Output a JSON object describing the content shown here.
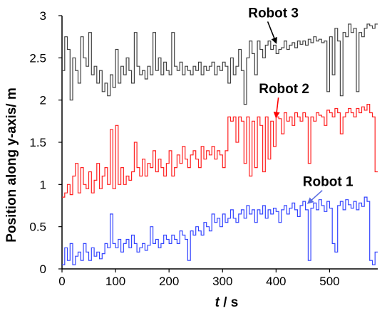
{
  "chart_data": {
    "type": "line",
    "xlabel_var": "t",
    "xlabel_unit": " / s",
    "ylabel": "Position along y-axis/ m",
    "xlim": [
      0,
      590
    ],
    "ylim": [
      0,
      3
    ],
    "xticks": [
      0,
      100,
      200,
      300,
      400,
      500
    ],
    "yticks": [
      0,
      0.5,
      1,
      1.5,
      2,
      2.5,
      3
    ],
    "ytick_labels": [
      "0",
      "0.5",
      "1",
      "1.5",
      "2",
      "2.5",
      "3"
    ],
    "grid": false,
    "annotations": [
      {
        "text": "Robot 3",
        "series": 2,
        "color": "#000000",
        "label_x": 395,
        "label_y": 2.98,
        "arrow_to": [
          400,
          2.68
        ]
      },
      {
        "text": "Robot 2",
        "series": 1,
        "color": "#ff0000",
        "label_x": 415,
        "label_y": 2.08,
        "arrow_to": [
          400,
          1.8
        ]
      },
      {
        "text": "Robot 1",
        "series": 0,
        "color": "#5b6ee1",
        "label_x": 497,
        "label_y": 0.98,
        "arrow_to": [
          460,
          0.78
        ]
      }
    ],
    "series": [
      {
        "name": "Robot 1",
        "color": "#3344ff",
        "x": [
          0,
          5,
          10,
          15,
          20,
          25,
          30,
          35,
          40,
          45,
          50,
          55,
          60,
          65,
          70,
          75,
          80,
          85,
          90,
          95,
          100,
          105,
          110,
          115,
          120,
          125,
          130,
          135,
          140,
          145,
          150,
          155,
          160,
          165,
          170,
          175,
          180,
          185,
          190,
          195,
          200,
          205,
          210,
          215,
          220,
          225,
          230,
          235,
          240,
          245,
          250,
          255,
          260,
          265,
          270,
          275,
          280,
          285,
          290,
          295,
          300,
          305,
          310,
          315,
          320,
          325,
          330,
          335,
          340,
          345,
          350,
          355,
          360,
          365,
          370,
          375,
          380,
          385,
          390,
          395,
          400,
          405,
          410,
          415,
          420,
          425,
          430,
          435,
          440,
          445,
          450,
          455,
          460,
          465,
          470,
          475,
          480,
          485,
          490,
          495,
          500,
          505,
          510,
          515,
          520,
          525,
          530,
          535,
          540,
          545,
          550,
          555,
          560,
          565,
          570,
          575,
          580,
          585
        ],
        "y": [
          0.05,
          0.25,
          0.1,
          0.3,
          0.05,
          0.15,
          0.2,
          0.1,
          0.3,
          0.2,
          0.1,
          0.25,
          0.15,
          0.2,
          0.12,
          0.18,
          0.3,
          0.25,
          0.65,
          0.3,
          0.25,
          0.35,
          0.2,
          0.3,
          0.35,
          0.25,
          0.4,
          0.3,
          0.2,
          0.25,
          0.3,
          0.22,
          0.28,
          0.5,
          0.3,
          0.35,
          0.25,
          0.3,
          0.4,
          0.35,
          0.3,
          0.4,
          0.35,
          0.3,
          0.45,
          0.4,
          0.35,
          0.1,
          0.45,
          0.4,
          0.5,
          0.45,
          0.4,
          0.55,
          0.5,
          0.45,
          0.65,
          0.55,
          0.6,
          0.5,
          0.65,
          0.55,
          0.6,
          0.7,
          0.6,
          0.55,
          0.65,
          0.7,
          0.6,
          0.75,
          0.65,
          0.7,
          0.55,
          0.7,
          0.65,
          0.75,
          0.6,
          0.7,
          0.65,
          0.72,
          0.68,
          0.55,
          0.7,
          0.75,
          0.65,
          0.72,
          0.78,
          0.7,
          0.62,
          0.75,
          0.8,
          0.7,
          0.1,
          0.72,
          0.78,
          0.7,
          0.82,
          0.75,
          0.68,
          0.8,
          0.72,
          0.3,
          0.2,
          0.75,
          0.8,
          0.7,
          0.82,
          0.76,
          0.72,
          0.8,
          0.7,
          0.78,
          0.74,
          0.85,
          0.8,
          0.1,
          0.05,
          0.2
        ]
      },
      {
        "name": "Robot 2",
        "color": "#ff2020",
        "x": [
          0,
          5,
          10,
          15,
          20,
          25,
          30,
          35,
          40,
          45,
          50,
          55,
          60,
          65,
          70,
          75,
          80,
          85,
          90,
          95,
          100,
          105,
          110,
          115,
          120,
          125,
          130,
          135,
          140,
          145,
          150,
          155,
          160,
          165,
          170,
          175,
          180,
          185,
          190,
          195,
          200,
          205,
          210,
          215,
          220,
          225,
          230,
          235,
          240,
          245,
          250,
          255,
          260,
          265,
          270,
          275,
          280,
          285,
          290,
          295,
          300,
          305,
          310,
          315,
          320,
          325,
          330,
          335,
          340,
          345,
          350,
          355,
          360,
          365,
          370,
          375,
          380,
          385,
          390,
          395,
          400,
          405,
          410,
          415,
          420,
          425,
          430,
          435,
          440,
          445,
          450,
          455,
          460,
          465,
          470,
          475,
          480,
          485,
          490,
          495,
          500,
          505,
          510,
          515,
          520,
          525,
          530,
          535,
          540,
          545,
          550,
          555,
          560,
          565,
          570,
          575,
          580,
          585
        ],
        "y": [
          0.85,
          0.9,
          1.0,
          0.88,
          1.1,
          1.25,
          0.9,
          1.2,
          1.0,
          0.95,
          1.15,
          0.9,
          1.05,
          1.25,
          0.95,
          1.1,
          1.2,
          1.0,
          1.65,
          0.95,
          1.7,
          1.0,
          1.2,
          1.0,
          1.1,
          1.05,
          1.15,
          1.5,
          1.2,
          1.1,
          1.3,
          1.1,
          1.25,
          1.2,
          1.4,
          1.15,
          1.3,
          1.2,
          1.1,
          1.25,
          1.4,
          1.1,
          1.2,
          1.35,
          1.25,
          1.45,
          1.3,
          1.2,
          1.35,
          1.4,
          1.3,
          1.2,
          1.45,
          1.3,
          1.4,
          1.35,
          1.45,
          1.3,
          1.4,
          1.35,
          1.2,
          1.4,
          1.8,
          1.75,
          1.8,
          1.5,
          1.8,
          1.75,
          1.25,
          1.8,
          1.1,
          1.75,
          1.2,
          1.8,
          1.7,
          1.15,
          1.8,
          1.3,
          1.75,
          1.45,
          1.8,
          1.78,
          1.6,
          1.85,
          1.75,
          1.8,
          1.7,
          1.85,
          1.8,
          1.75,
          1.85,
          1.8,
          1.25,
          1.8,
          1.75,
          1.85,
          1.82,
          1.8,
          1.7,
          1.88,
          1.85,
          1.8,
          1.9,
          1.85,
          1.6,
          1.8,
          1.85,
          1.9,
          1.85,
          1.8,
          1.9,
          1.85,
          1.92,
          1.88,
          1.95,
          1.85,
          1.8,
          1.15
        ]
      },
      {
        "name": "Robot 3",
        "color": "#404040",
        "x": [
          0,
          5,
          10,
          15,
          20,
          25,
          30,
          35,
          40,
          45,
          50,
          55,
          60,
          65,
          70,
          75,
          80,
          85,
          90,
          95,
          100,
          105,
          110,
          115,
          120,
          125,
          130,
          135,
          140,
          145,
          150,
          155,
          160,
          165,
          170,
          175,
          180,
          185,
          190,
          195,
          200,
          205,
          210,
          215,
          220,
          225,
          230,
          235,
          240,
          245,
          250,
          255,
          260,
          265,
          270,
          275,
          280,
          285,
          290,
          295,
          300,
          305,
          310,
          315,
          320,
          325,
          330,
          335,
          340,
          345,
          350,
          355,
          360,
          365,
          370,
          375,
          380,
          385,
          390,
          395,
          400,
          405,
          410,
          415,
          420,
          425,
          430,
          435,
          440,
          445,
          450,
          455,
          460,
          465,
          470,
          475,
          480,
          485,
          490,
          495,
          500,
          505,
          510,
          515,
          520,
          525,
          530,
          535,
          540,
          545,
          550,
          555,
          560,
          565,
          570,
          575,
          580,
          585
        ],
        "y": [
          2.35,
          2.75,
          2.6,
          2.0,
          2.5,
          2.35,
          2.2,
          2.75,
          2.5,
          2.4,
          2.8,
          2.3,
          2.4,
          2.2,
          2.35,
          2.1,
          2.2,
          2.05,
          2.3,
          2.15,
          2.6,
          2.2,
          2.4,
          2.3,
          2.5,
          2.35,
          2.2,
          2.8,
          2.4,
          2.3,
          2.35,
          2.25,
          2.4,
          2.3,
          2.8,
          2.35,
          2.5,
          2.3,
          2.45,
          2.35,
          2.3,
          2.8,
          2.4,
          2.35,
          2.45,
          2.3,
          2.4,
          2.35,
          2.3,
          2.4,
          2.35,
          2.45,
          2.3,
          2.4,
          2.35,
          2.4,
          2.45,
          2.3,
          2.4,
          2.35,
          2.45,
          2.4,
          2.2,
          2.5,
          2.3,
          2.4,
          2.6,
          2.35,
          1.95,
          2.5,
          2.7,
          2.55,
          2.3,
          2.7,
          2.6,
          2.5,
          2.65,
          2.7,
          2.6,
          2.65,
          2.55,
          2.6,
          2.62,
          2.7,
          2.6,
          2.65,
          2.68,
          2.62,
          2.7,
          2.66,
          2.7,
          2.65,
          2.72,
          2.68,
          2.75,
          2.7,
          2.72,
          2.68,
          2.7,
          2.1,
          2.75,
          2.3,
          2.85,
          2.7,
          2.05,
          2.8,
          2.75,
          2.9,
          2.8,
          2.85,
          2.1,
          2.8,
          2.75,
          2.85,
          2.9,
          2.88,
          2.85,
          2.9
        ]
      }
    ]
  }
}
